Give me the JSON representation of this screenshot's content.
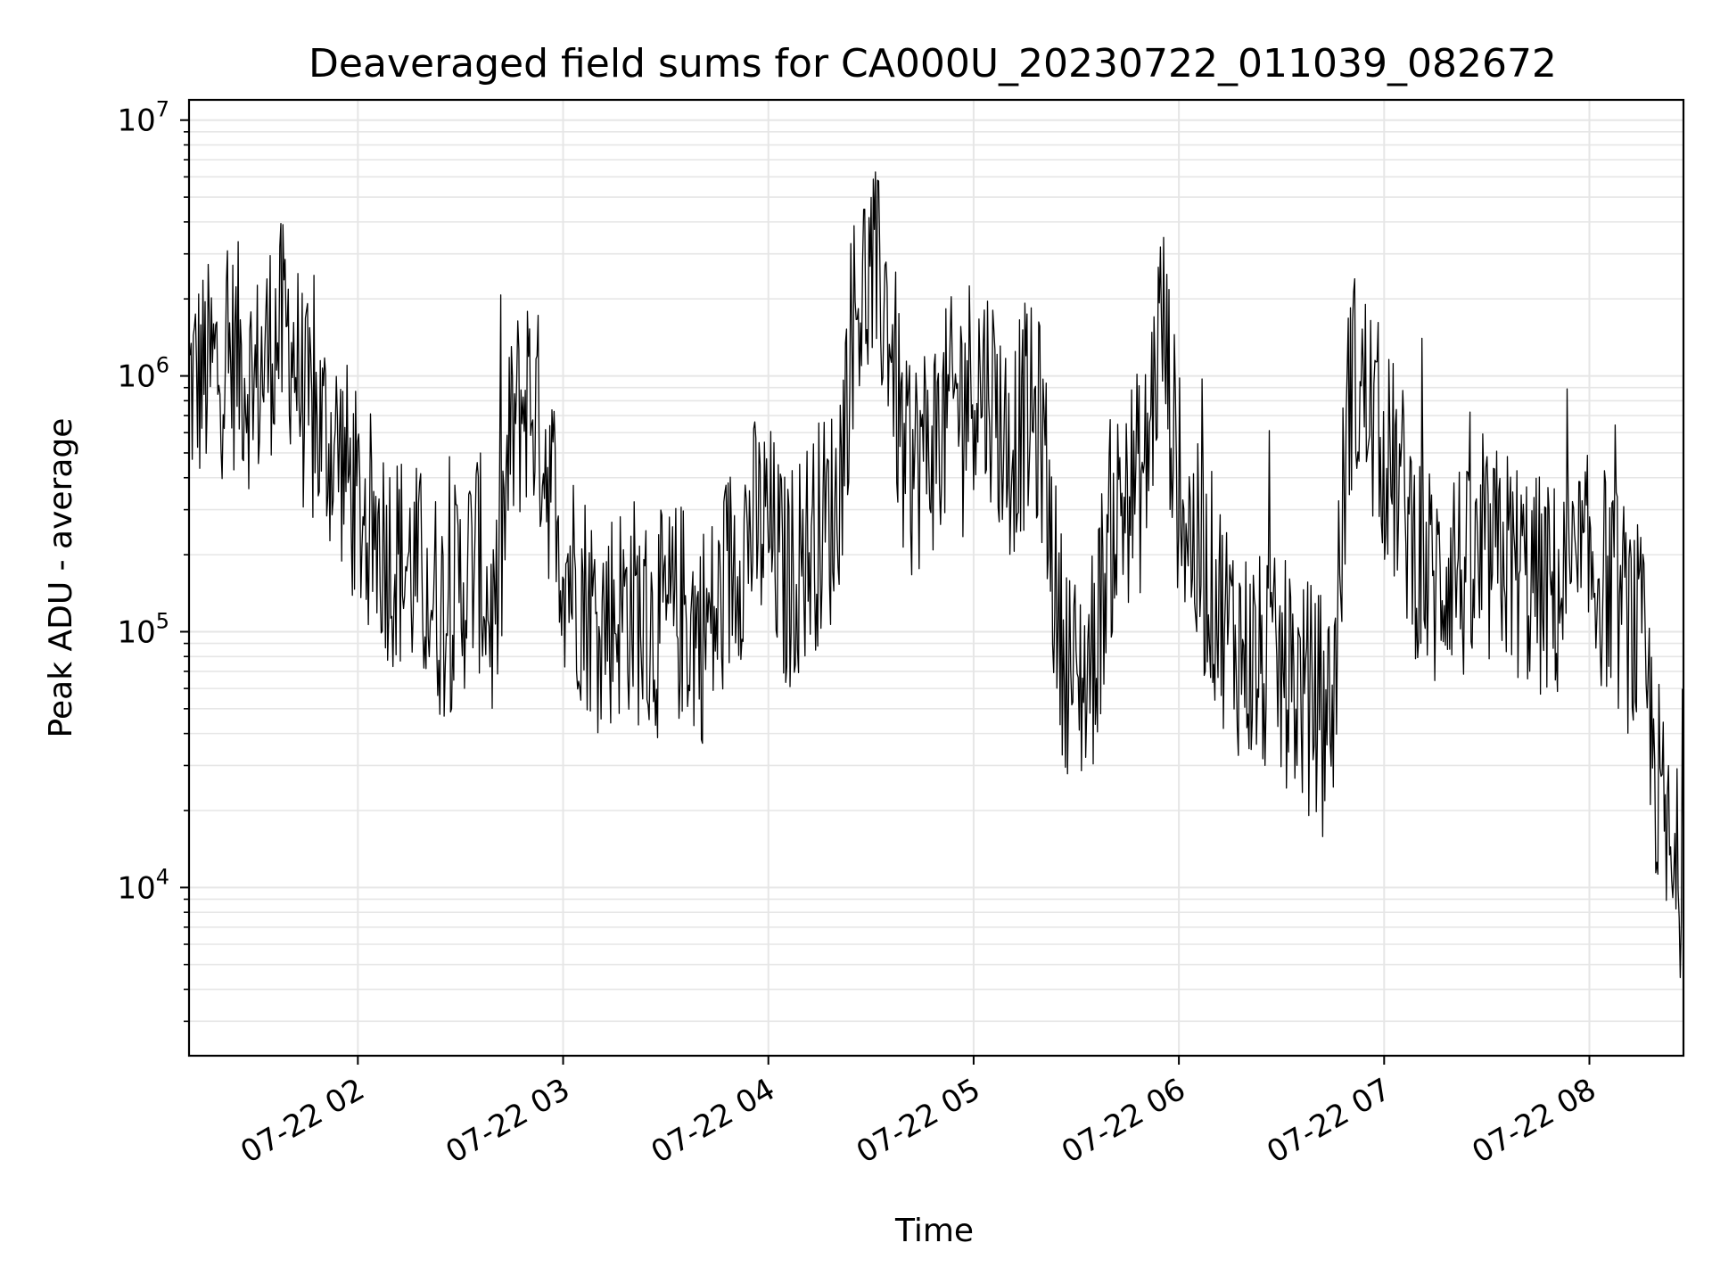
{
  "chart_data": {
    "type": "line",
    "title": "Deaveraged field sums for CA000U_20230722_011039_082672",
    "xlabel": "Time",
    "ylabel": "Peak ADU - average",
    "yscale": "log",
    "ylim": [
      2200,
      12000000
    ],
    "xlim": [
      "07-22 01:10:39",
      "07-22 08:26:72"
    ],
    "grid": true,
    "x_tick_labels": [
      "07-22 02",
      "07-22 03",
      "07-22 04",
      "07-22 05",
      "07-22 06",
      "07-22 07",
      "07-22 08"
    ],
    "y_tick_labels": [
      {
        "base": "10",
        "exp": "4",
        "value": 10000
      },
      {
        "base": "10",
        "exp": "5",
        "value": 100000
      },
      {
        "base": "10",
        "exp": "6",
        "value": 1000000
      },
      {
        "base": "10",
        "exp": "7",
        "value": 10000000
      }
    ],
    "line_color": "#000000",
    "grid_color": "#e6e6e6",
    "series": [
      {
        "x": [
          "01:10",
          "01:15",
          "01:20",
          "01:25",
          "01:30",
          "01:35",
          "01:40",
          "01:45",
          "01:50",
          "01:55",
          "02:00",
          "02:05",
          "02:10",
          "02:15",
          "02:20",
          "02:25",
          "02:30",
          "02:35",
          "02:40",
          "02:45",
          "02:50",
          "02:55",
          "03:00",
          "03:05",
          "03:10",
          "03:15",
          "03:20",
          "03:25",
          "03:30",
          "03:35",
          "03:40",
          "03:45",
          "03:50",
          "03:55",
          "04:00",
          "04:05",
          "04:10",
          "04:15",
          "04:20",
          "04:25",
          "04:30",
          "04:35",
          "04:40",
          "04:45",
          "04:50",
          "04:55",
          "05:00",
          "05:05",
          "05:10",
          "05:15",
          "05:20",
          "05:25",
          "05:30",
          "05:35",
          "05:40",
          "05:45",
          "05:50",
          "05:55",
          "06:00",
          "06:05",
          "06:10",
          "06:15",
          "06:20",
          "06:25",
          "06:30",
          "06:35",
          "06:40",
          "06:45",
          "06:50",
          "06:55",
          "07:00",
          "07:05",
          "07:10",
          "07:15",
          "07:20",
          "07:25",
          "07:30",
          "07:35",
          "07:40",
          "07:45",
          "07:50",
          "07:55",
          "08:00",
          "08:05",
          "08:10",
          "08:15",
          "08:20",
          "08:25",
          "08:26"
        ],
        "y": [
          900000,
          1000000,
          1100000,
          1200000,
          900000,
          1400000,
          1500000,
          700000,
          600000,
          500000,
          300000,
          250000,
          200000,
          180000,
          150000,
          120000,
          150000,
          200000,
          100000,
          600000,
          900000,
          500000,
          200000,
          150000,
          110000,
          120000,
          130000,
          100000,
          110000,
          120000,
          100000,
          110000,
          200000,
          250000,
          250000,
          150000,
          200000,
          250000,
          300000,
          1800000,
          2500000,
          1800000,
          400000,
          500000,
          600000,
          800000,
          1000000,
          900000,
          500000,
          700000,
          600000,
          100000,
          60000,
          80000,
          250000,
          350000,
          400000,
          1800000,
          350000,
          200000,
          150000,
          100000,
          80000,
          70000,
          70000,
          60000,
          55000,
          50000,
          1000000,
          800000,
          500000,
          350000,
          200000,
          150000,
          200000,
          150000,
          180000,
          200000,
          170000,
          150000,
          140000,
          150000,
          180000,
          160000,
          120000,
          90000,
          25000,
          9000,
          12000
        ]
      }
    ]
  }
}
